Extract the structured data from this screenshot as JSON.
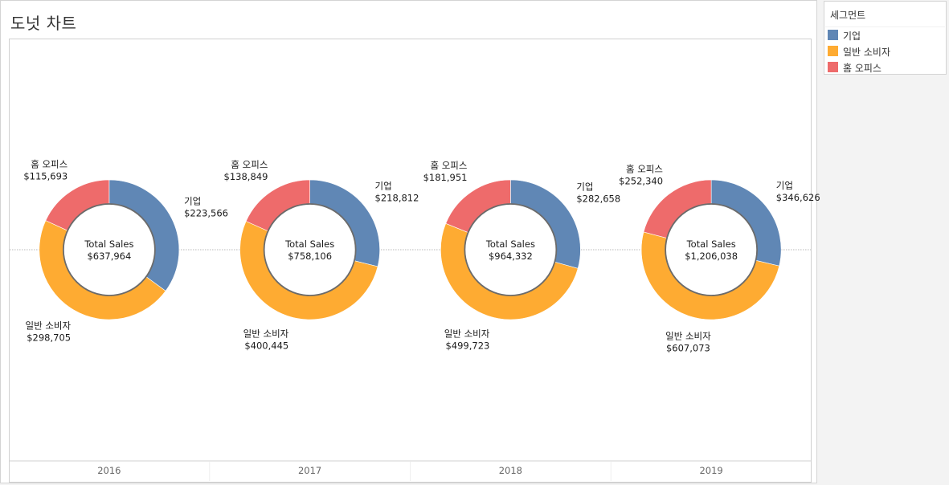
{
  "title": "도넛 차트",
  "legend": {
    "title": "세그먼트",
    "items": [
      {
        "label": "기업",
        "color": "#6087b5"
      },
      {
        "label": "일반 소비자",
        "color": "#feab32"
      },
      {
        "label": "홈 오피스",
        "color": "#ee6b6b"
      }
    ]
  },
  "chart_data": {
    "type": "pie",
    "subtype": "donut",
    "categories": [
      "2016",
      "2017",
      "2018",
      "2019"
    ],
    "series_names": [
      "기업",
      "일반 소비자",
      "홈 오피스"
    ],
    "colors": [
      "#6087b5",
      "#feab32",
      "#ee6b6b"
    ],
    "center_label": "Total Sales",
    "donuts": [
      {
        "year": "2016",
        "total": "$637,964",
        "values": [
          223566,
          298705,
          115693
        ],
        "value_labels": [
          "$223,566",
          "$298,705",
          "$115,693"
        ]
      },
      {
        "year": "2017",
        "total": "$758,106",
        "values": [
          218812,
          400445,
          138849
        ],
        "value_labels": [
          "$218,812",
          "$400,445",
          "$138,849"
        ]
      },
      {
        "year": "2018",
        "total": "$964,332",
        "values": [
          282658,
          499723,
          181951
        ],
        "value_labels": [
          "$282,658",
          "$499,723",
          "$181,951"
        ]
      },
      {
        "year": "2019",
        "total": "$1,206,038",
        "values": [
          346626,
          607073,
          252340
        ],
        "value_labels": [
          "$346,626",
          "$607,073",
          "$252,340"
        ]
      }
    ]
  }
}
